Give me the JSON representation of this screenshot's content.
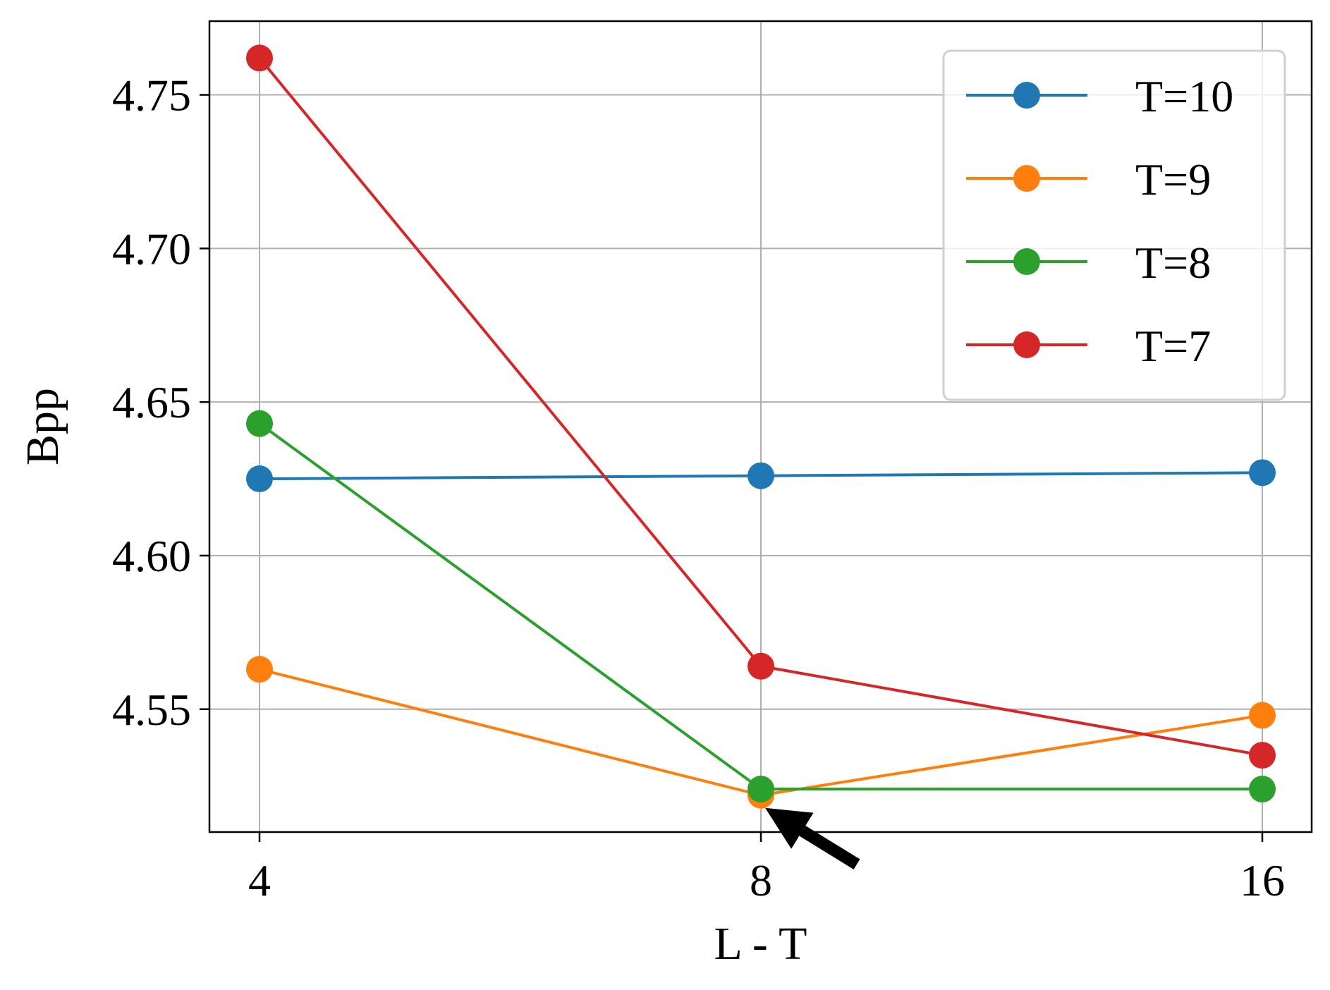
{
  "chart_data": {
    "type": "line",
    "title": "",
    "xlabel": "L - T",
    "ylabel": "Bpp",
    "categories": [
      "4",
      "8",
      "16"
    ],
    "yticks": [
      "4.55",
      "4.60",
      "4.65",
      "4.70",
      "4.75"
    ],
    "ylim": [
      4.51,
      4.774
    ],
    "grid": true,
    "legend_position": "top-right",
    "series": [
      {
        "name": "T=10",
        "color": "#1f77b4",
        "values": [
          4.625,
          4.626,
          4.627
        ]
      },
      {
        "name": "T=9",
        "color": "#ff7f0e",
        "values": [
          4.563,
          4.522,
          4.548
        ]
      },
      {
        "name": "T=8",
        "color": "#2ca02c",
        "values": [
          4.643,
          4.524,
          4.524
        ]
      },
      {
        "name": "T=7",
        "color": "#d62728",
        "values": [
          4.762,
          4.564,
          4.535
        ]
      }
    ],
    "annotation": {
      "type": "arrow",
      "target_category": "8",
      "target_value": 4.522
    }
  }
}
